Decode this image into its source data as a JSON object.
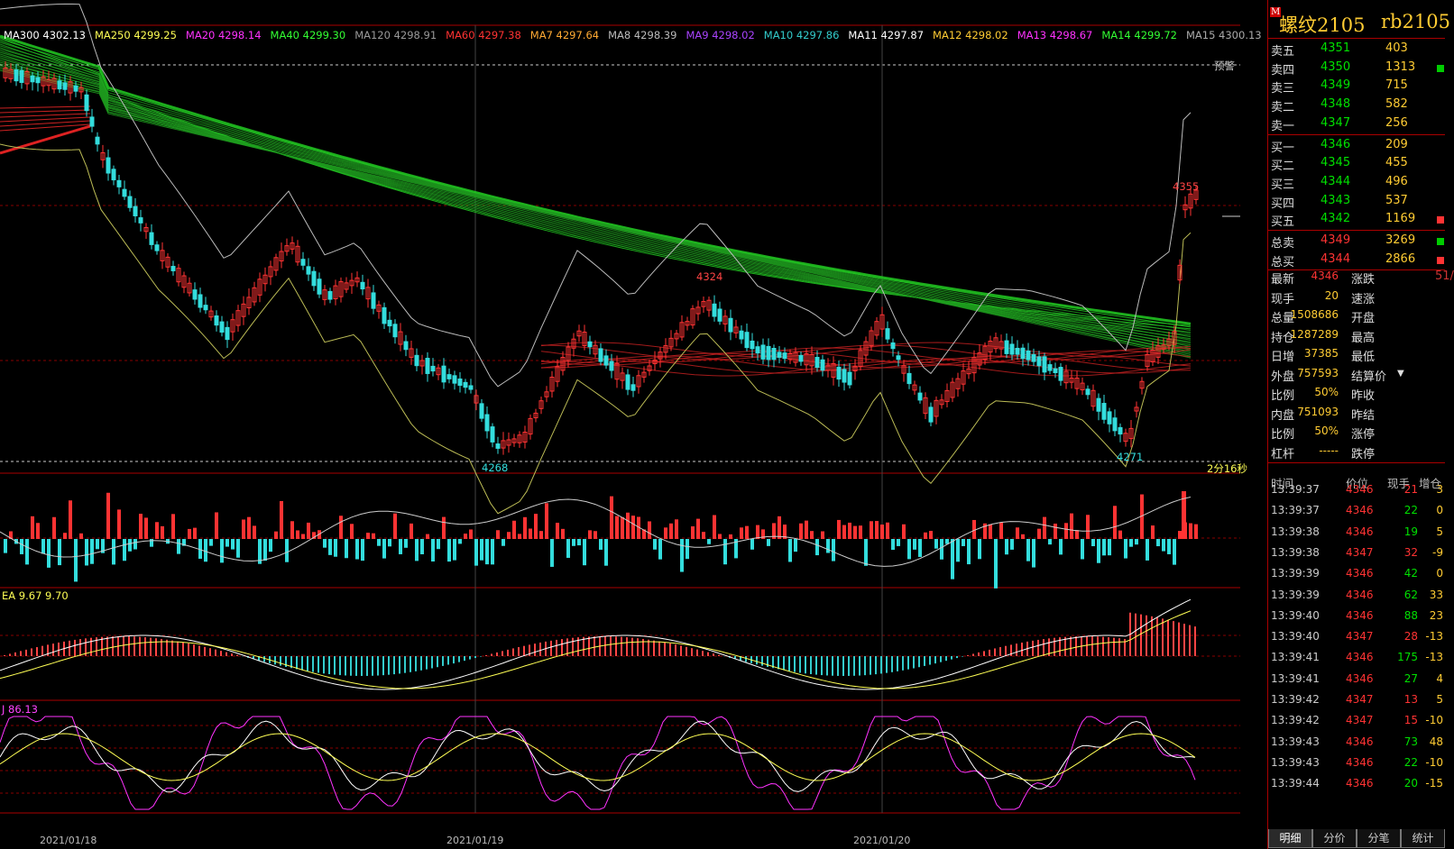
{
  "ma_legend": [
    {
      "label": "MA300 4302.13",
      "color": "#ffffff"
    },
    {
      "label": "MA250 4299.25",
      "color": "#ffff55"
    },
    {
      "label": "MA20 4298.14",
      "color": "#ff33ff"
    },
    {
      "label": "MA40 4299.30",
      "color": "#33ff33"
    },
    {
      "label": "MA120 4298.91",
      "color": "#999999"
    },
    {
      "label": "MA60 4297.38",
      "color": "#ff3333"
    },
    {
      "label": "MA7 4297.64",
      "color": "#ffaa33"
    },
    {
      "label": "MA8 4298.39",
      "color": "#bbbbbb"
    },
    {
      "label": "MA9 4298.02",
      "color": "#aa44ff"
    },
    {
      "label": "MA10 4297.86",
      "color": "#33cccc"
    },
    {
      "label": "MA11 4297.87",
      "color": "#ffffff"
    },
    {
      "label": "MA12 4298.02",
      "color": "#ffcc33"
    },
    {
      "label": "MA13 4298.67",
      "color": "#ff33ff"
    },
    {
      "label": "MA14 4299.72",
      "color": "#33ff33"
    },
    {
      "label": "MA15 4300.13",
      "color": "#aaaaaa"
    }
  ],
  "price_labels": {
    "high": "4355",
    "peak_mid": "4324",
    "low_left": "4268",
    "low_right": "4271",
    "warn": "预警",
    "timer": "2分16秒"
  },
  "macd_label": "EA 9.67  9.70",
  "kdj_label": "J 86.13",
  "dates": [
    "2021/01/18",
    "2021/01/19",
    "2021/01/20"
  ],
  "side": {
    "flag": "M",
    "name": "螺纹2105",
    "code": "rb2105",
    "asks": [
      {
        "label": "卖五",
        "price": "4351",
        "vol": "403"
      },
      {
        "label": "卖四",
        "price": "4350",
        "vol": "1313"
      },
      {
        "label": "卖三",
        "price": "4349",
        "vol": "715"
      },
      {
        "label": "卖二",
        "price": "4348",
        "vol": "582"
      },
      {
        "label": "卖一",
        "price": "4347",
        "vol": "256"
      }
    ],
    "bids": [
      {
        "label": "买一",
        "price": "4346",
        "vol": "209"
      },
      {
        "label": "买二",
        "price": "4345",
        "vol": "455"
      },
      {
        "label": "买三",
        "price": "4344",
        "vol": "496"
      },
      {
        "label": "买四",
        "price": "4343",
        "vol": "537"
      },
      {
        "label": "买五",
        "price": "4342",
        "vol": "1169"
      }
    ],
    "totals": [
      {
        "label": "总卖",
        "price": "4349",
        "vol": "3269"
      },
      {
        "label": "总买",
        "price": "4344",
        "vol": "2866"
      }
    ],
    "stats": [
      {
        "k1": "最新",
        "v1": "4346",
        "k2": "涨跌",
        "v2": "51/"
      },
      {
        "k1": "现手",
        "v1": "20",
        "k2": "速涨",
        "v2": ""
      },
      {
        "k1": "总量",
        "v1": "1508686",
        "k2": "开盘",
        "v2": ""
      },
      {
        "k1": "持仓",
        "v1": "1287289",
        "k2": "最高",
        "v2": ""
      },
      {
        "k1": "日增",
        "v1": "37385",
        "k2": "最低",
        "v2": ""
      },
      {
        "k1": "外盘",
        "v1": "757593",
        "k2": "结算价",
        "v2": ""
      },
      {
        "k1": "比例",
        "v1": "50%",
        "k2": "昨收",
        "v2": ""
      },
      {
        "k1": "内盘",
        "v1": "751093",
        "k2": "昨结",
        "v2": ""
      },
      {
        "k1": "比例",
        "v1": "50%",
        "k2": "涨停",
        "v2": ""
      },
      {
        "k1": "杠杆",
        "v1": "-----",
        "k2": "跌停",
        "v2": ""
      }
    ],
    "tick_header": {
      "time": "时间",
      "price": "价位",
      "vol": "现手",
      "oi": "增仓"
    },
    "ticks": [
      {
        "time": "13:39:37",
        "price": "4346",
        "vol": "21",
        "oi": "3",
        "vcolor": "#ff3333"
      },
      {
        "time": "13:39:37",
        "price": "4346",
        "vol": "22",
        "oi": "0",
        "vcolor": "#00e000"
      },
      {
        "time": "13:39:38",
        "price": "4346",
        "vol": "19",
        "oi": "5",
        "vcolor": "#00e000"
      },
      {
        "time": "13:39:38",
        "price": "4347",
        "vol": "32",
        "oi": "-9",
        "vcolor": "#ff3333"
      },
      {
        "time": "13:39:39",
        "price": "4346",
        "vol": "42",
        "oi": "0",
        "vcolor": "#00e000"
      },
      {
        "time": "13:39:39",
        "price": "4346",
        "vol": "62",
        "oi": "33",
        "vcolor": "#00e000"
      },
      {
        "time": "13:39:40",
        "price": "4346",
        "vol": "88",
        "oi": "23",
        "vcolor": "#00e000"
      },
      {
        "time": "13:39:40",
        "price": "4347",
        "vol": "28",
        "oi": "-13",
        "vcolor": "#ff3333"
      },
      {
        "time": "13:39:41",
        "price": "4346",
        "vol": "175",
        "oi": "-13",
        "vcolor": "#00e000"
      },
      {
        "time": "13:39:41",
        "price": "4346",
        "vol": "27",
        "oi": "4",
        "vcolor": "#00e000"
      },
      {
        "time": "13:39:42",
        "price": "4347",
        "vol": "13",
        "oi": "5",
        "vcolor": "#ff3333"
      },
      {
        "time": "13:39:42",
        "price": "4347",
        "vol": "15",
        "oi": "-10",
        "vcolor": "#ff3333"
      },
      {
        "time": "13:39:43",
        "price": "4346",
        "vol": "73",
        "oi": "48",
        "vcolor": "#00e000"
      },
      {
        "time": "13:39:43",
        "price": "4346",
        "vol": "22",
        "oi": "-10",
        "vcolor": "#00e000"
      },
      {
        "time": "13:39:44",
        "price": "4346",
        "vol": "20",
        "oi": "-15",
        "vcolor": "#00e000"
      }
    ],
    "tabs": [
      "明细",
      "分价",
      "分笔",
      "统计"
    ]
  },
  "colors": {
    "up": "#ff3333",
    "down": "#33dddd",
    "grid": "#aa0000",
    "accent": "#ffcc33"
  }
}
